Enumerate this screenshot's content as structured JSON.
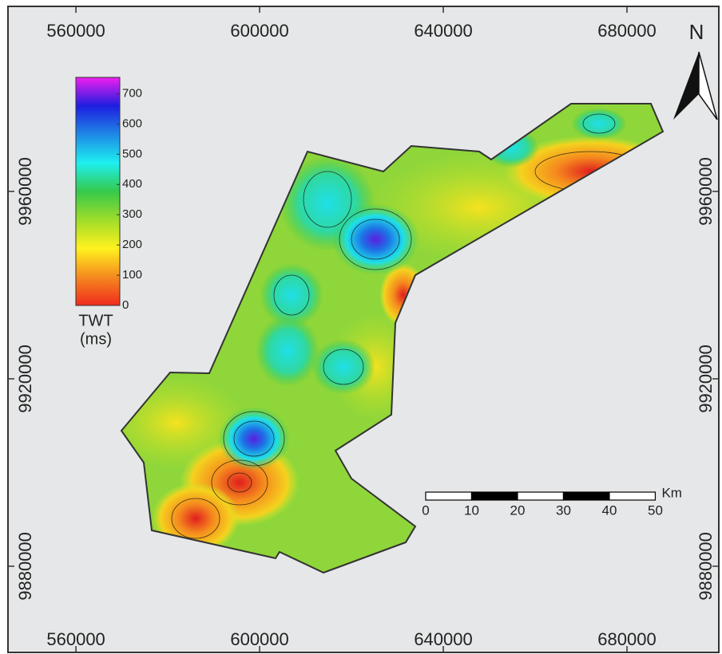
{
  "map": {
    "xticks": [
      560000,
      600000,
      640000,
      680000
    ],
    "yticks": [
      9960000,
      9920000,
      9880000
    ],
    "xlim": [
      545200,
      700000
    ],
    "ylim": [
      9861600,
      9999500
    ],
    "north": "N",
    "colorbar": {
      "label": [
        "TWT",
        "(ms)"
      ],
      "ticks": [
        0,
        100,
        200,
        300,
        400,
        500,
        600,
        700
      ],
      "lim": [
        0,
        754
      ],
      "colors": [
        "#f02a1e",
        "#f58a1e",
        "#fff21e",
        "#9fdc2a",
        "#35c94a",
        "#1ef0f0",
        "#1e88e6",
        "#1e1ee0",
        "#f01ef0"
      ]
    },
    "scale_bar": {
      "ticks": [
        0,
        10,
        20,
        30,
        40,
        50
      ],
      "unit": "Km"
    }
  }
}
